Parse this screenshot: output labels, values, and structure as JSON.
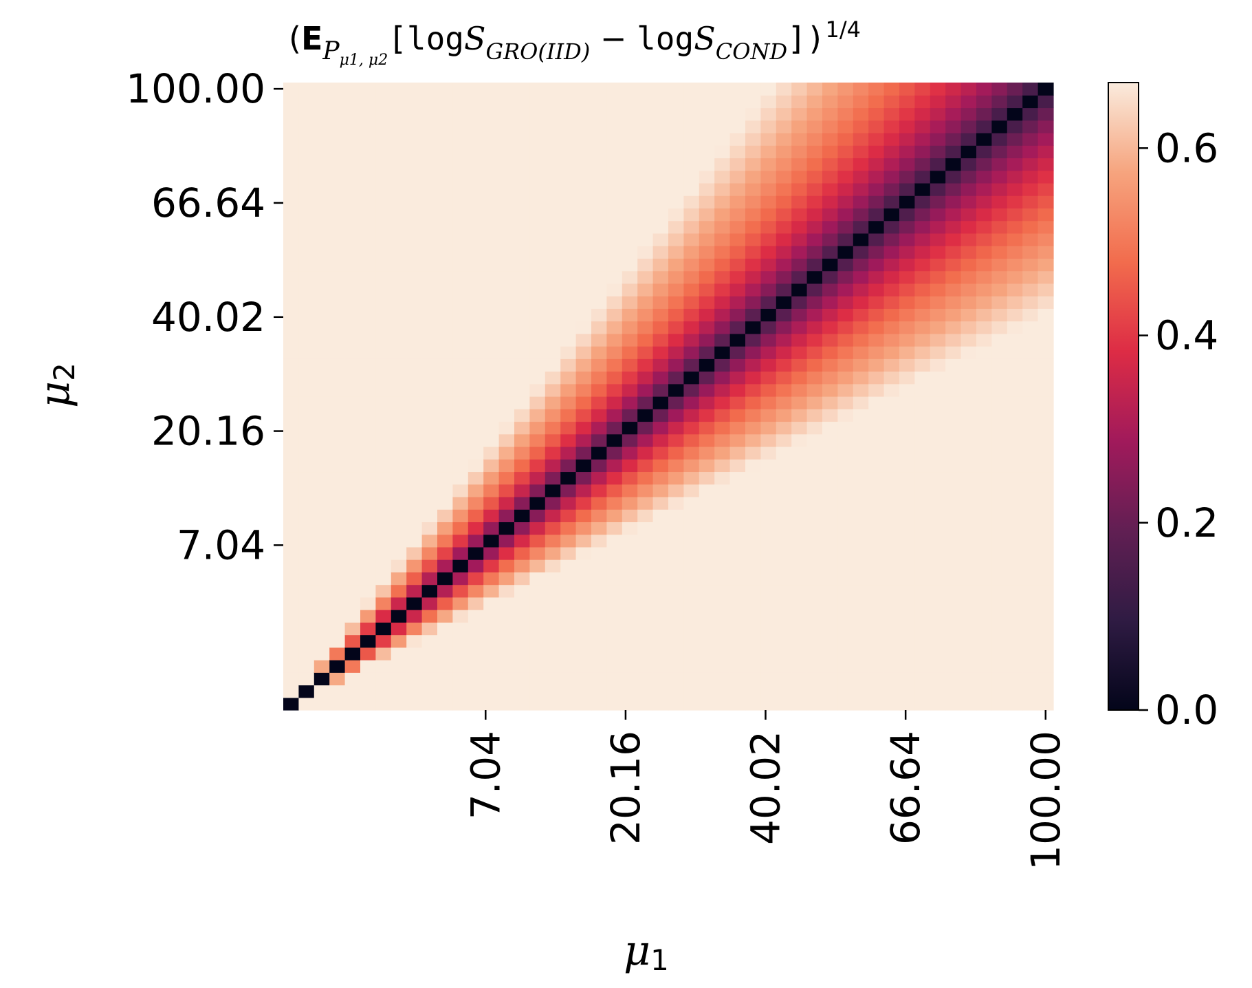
{
  "chart_data": {
    "type": "heatmap",
    "title": {
      "open": "(",
      "expect": "E",
      "measure": "P",
      "measure_sub": "μ1, μ2",
      "bracket_open": "[",
      "log1": "log",
      "s1": "S",
      "s1_sub": "GRO(IID)",
      "minus": " − ",
      "log2": "log",
      "s2": "S",
      "s2_sub": "COND",
      "close": "])",
      "power": "1/4"
    },
    "xlabel": {
      "symbol": "μ",
      "sub": "1"
    },
    "ylabel": {
      "symbol": "μ",
      "sub": "2"
    },
    "xticks": [
      "7.04",
      "20.16",
      "40.02",
      "66.64",
      "100.00"
    ],
    "yticks": [
      "7.04",
      "20.16",
      "40.02",
      "66.64",
      "100.00"
    ],
    "tick_values": [
      7.04,
      20.16,
      40.02,
      66.64,
      100.0
    ],
    "grid": {
      "n": 50,
      "min": 0.01,
      "max": 100.0,
      "spacing": "quadratic"
    },
    "value_function": "(0.25 * (ln(mu1/mu2))^2)^(1/4)",
    "colorbar": {
      "ticks": [
        "0.0",
        "0.2",
        "0.4",
        "0.6"
      ],
      "tick_values": [
        0.0,
        0.2,
        0.4,
        0.6
      ],
      "vmin": 0.0,
      "vmax": 0.67,
      "colormap": "rocket",
      "stops": [
        "#03051a",
        "#2f1b43",
        "#611f53",
        "#a11a5b",
        "#dd2c45",
        "#f26c4d",
        "#f6a47e",
        "#faebdd"
      ]
    },
    "grid_lines": false,
    "legend": "colorbar-right"
  }
}
